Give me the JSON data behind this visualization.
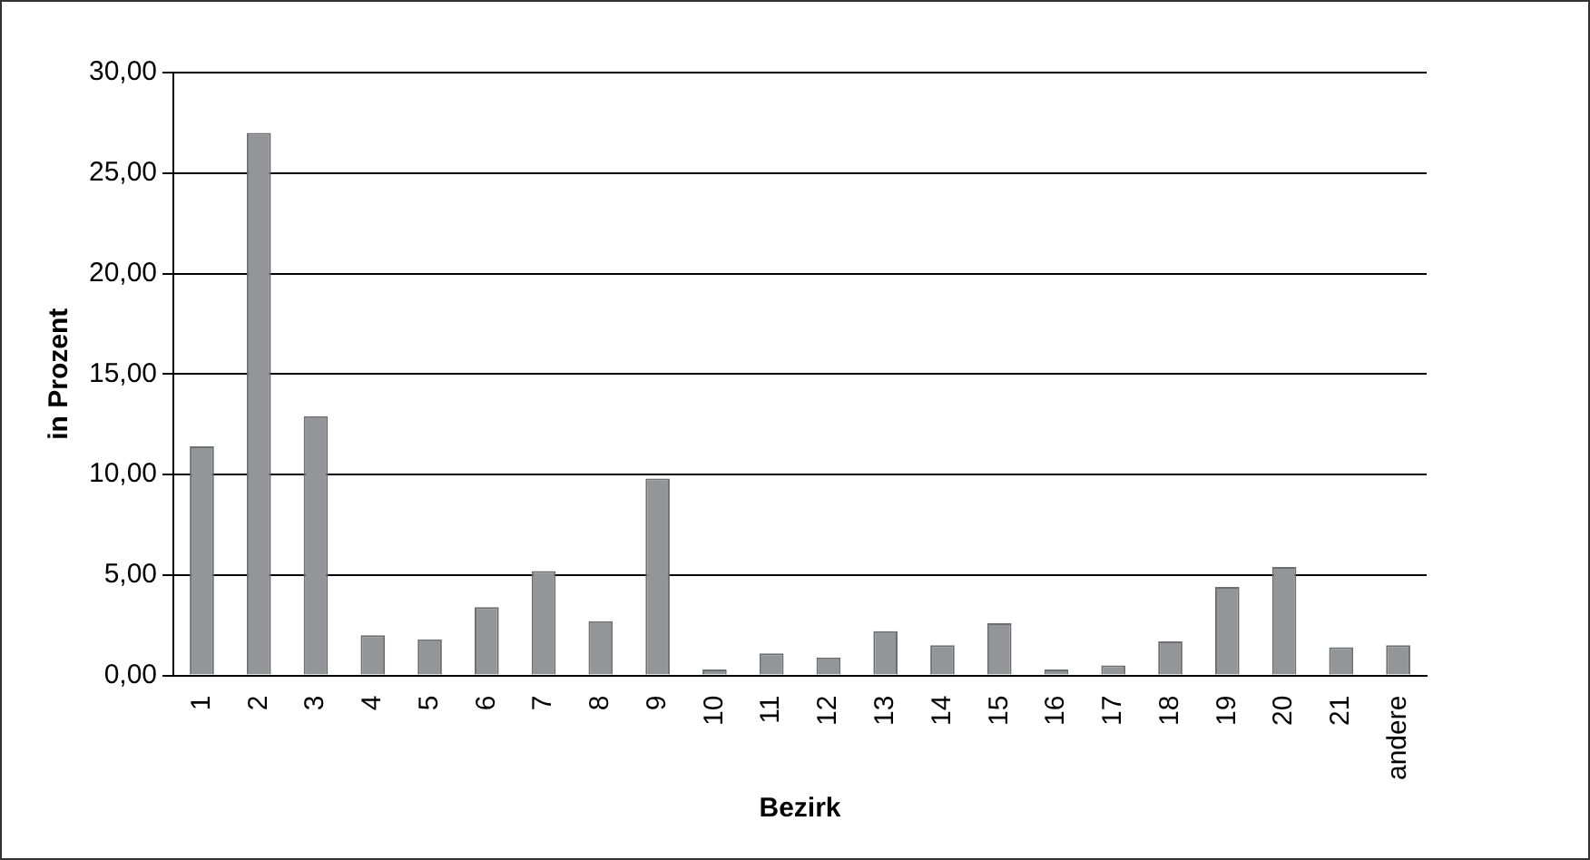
{
  "chart_data": {
    "type": "bar",
    "xlabel": "Bezirk",
    "ylabel": "in Prozent",
    "categories": [
      "1",
      "2",
      "3",
      "4",
      "5",
      "6",
      "7",
      "8",
      "9",
      "10",
      "11",
      "12",
      "13",
      "14",
      "15",
      "16",
      "17",
      "18",
      "19",
      "20",
      "21",
      "andere"
    ],
    "values": [
      11.4,
      27.0,
      12.9,
      2.0,
      1.8,
      3.4,
      5.2,
      2.7,
      9.8,
      0.3,
      1.1,
      0.9,
      2.2,
      1.5,
      2.6,
      0.3,
      0.5,
      1.7,
      4.4,
      5.4,
      1.4,
      1.5
    ],
    "color": "#939598",
    "ylim": [
      0,
      30
    ],
    "yticks": [
      {
        "value": 0,
        "label": "0,00"
      },
      {
        "value": 5,
        "label": "5,00"
      },
      {
        "value": 10,
        "label": "10,00"
      },
      {
        "value": 15,
        "label": "15,00"
      },
      {
        "value": 20,
        "label": "20,00"
      },
      {
        "value": 25,
        "label": "25,00"
      },
      {
        "value": 30,
        "label": "30,00"
      }
    ],
    "grid": "y",
    "legend": false
  }
}
